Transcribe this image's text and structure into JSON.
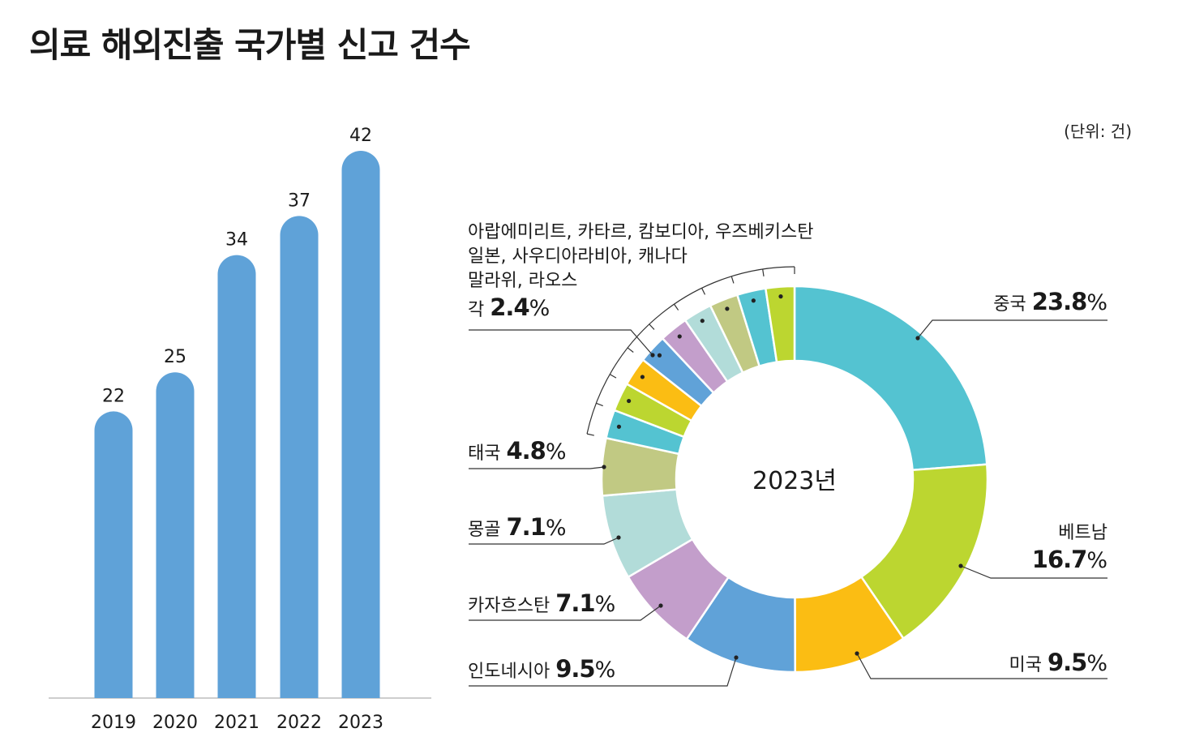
{
  "title": "의료 해외진출 국가별 신고 건수",
  "unit": "(단위: 건)",
  "colors": {
    "bar": "#5fa2d8"
  },
  "chart_data": [
    {
      "type": "bar",
      "categories": [
        "2019",
        "2020",
        "2021",
        "2022",
        "2023"
      ],
      "values": [
        22,
        25,
        34,
        37,
        42
      ],
      "ylim": [
        0,
        45
      ],
      "title": "",
      "xlabel": "",
      "ylabel": ""
    },
    {
      "type": "pie",
      "center_label": "2023년",
      "slices": [
        {
          "label": "중국",
          "value": 23.8,
          "pct_text": "23.8",
          "color": "#54c3d1"
        },
        {
          "label": "베트남",
          "value": 16.7,
          "pct_text": "16.7",
          "color": "#bcd630"
        },
        {
          "label": "미국",
          "value": 9.5,
          "pct_text": "9.5",
          "color": "#fbbd13"
        },
        {
          "label": "인도네시아",
          "value": 9.5,
          "pct_text": "9.5",
          "color": "#60a2d8"
        },
        {
          "label": "카자흐스탄",
          "value": 7.1,
          "pct_text": "7.1",
          "color": "#c39ecb"
        },
        {
          "label": "몽골",
          "value": 7.1,
          "pct_text": "7.1",
          "color": "#b2dcd9"
        },
        {
          "label": "태국",
          "value": 4.8,
          "pct_text": "4.8",
          "color": "#c1c983"
        },
        {
          "label": "말라위",
          "value": 2.4,
          "color": "#54c3d1"
        },
        {
          "label": "라오스",
          "value": 2.4,
          "color": "#bcd630"
        },
        {
          "label": "캐나다",
          "value": 2.4,
          "color": "#fbbd13"
        },
        {
          "label": "사우디아라비아",
          "value": 2.4,
          "color": "#60a2d8"
        },
        {
          "label": "일본",
          "value": 2.4,
          "color": "#c39ecb"
        },
        {
          "label": "우즈베키스탄",
          "value": 2.4,
          "color": "#b2dcd9"
        },
        {
          "label": "캄보디아",
          "value": 2.4,
          "color": "#c1c983"
        },
        {
          "label": "카타르",
          "value": 2.4,
          "color": "#54c3d1"
        },
        {
          "label": "아랍에미리트",
          "value": 2.4,
          "color": "#bcd630"
        }
      ],
      "group_label": {
        "lines": [
          "아랍에미리트, 카타르, 캄보디아, 우즈베키스탄",
          "일본, 사우디아라비아, 캐나다",
          "말라위, 라오스"
        ],
        "prefix": "각",
        "pct_text": "2.4"
      },
      "percent_sign": "%"
    }
  ]
}
